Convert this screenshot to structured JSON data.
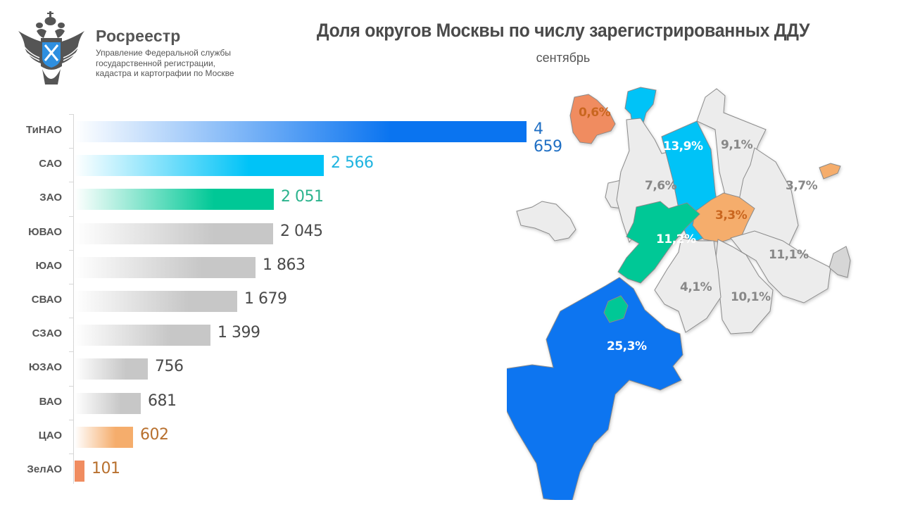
{
  "header": {
    "brand": "Росреестр",
    "brand_sub": [
      "Управление Федеральной службы",
      "государственной регистрации,",
      "кадастра и картографии по Москве"
    ],
    "title": "Доля округов Москвы по числу зарегистрированных ДДУ",
    "subtitle": "сентябрь"
  },
  "colors": {
    "tinao": "#0a74f0",
    "sao": "#00c3f7",
    "zao": "#00c896",
    "cao": "#f5ad6c",
    "zelao": "#f08c60",
    "grey": "#c7c7c7",
    "map_grey": "#ececec"
  },
  "chart_data": {
    "type": "bar",
    "orientation": "horizontal",
    "title": "Доля округов Москвы по числу зарегистрированных ДДУ",
    "subtitle": "сентябрь",
    "xlabel": "",
    "ylabel": "",
    "grid": false,
    "categories": [
      "ТиНАО",
      "САО",
      "ЗАО",
      "ЮВАО",
      "ЮАО",
      "СВАО",
      "СЗАО",
      "ЮЗАО",
      "ВАО",
      "ЦАО",
      "ЗелАО"
    ],
    "values": [
      4659,
      2566,
      2051,
      2045,
      1863,
      1679,
      1399,
      756,
      681,
      602,
      101
    ],
    "value_labels": [
      "4 659",
      "2 566",
      "2 051",
      "2 045",
      "1 863",
      "1 679",
      "1 399",
      "756",
      "681",
      "602",
      "101"
    ],
    "bar_colors": [
      "#0a74f0",
      "#00c3f7",
      "#00c896",
      "#c7c7c7",
      "#c7c7c7",
      "#c7c7c7",
      "#c7c7c7",
      "#c7c7c7",
      "#c7c7c7",
      "#f5ad6c",
      "#f08c60"
    ],
    "label_colors": [
      "#1f6fc4",
      "#1fb4e0",
      "#2bb38d",
      "#4a4a4a",
      "#4a4a4a",
      "#4a4a4a",
      "#4a4a4a",
      "#4a4a4a",
      "#4a4a4a",
      "#b8702e",
      "#b8702e"
    ],
    "map_shares": [
      {
        "district": "ТиНАО",
        "share": "25,3%"
      },
      {
        "district": "САО",
        "share": "13,9%"
      },
      {
        "district": "ЗАО",
        "share": "11,2%"
      },
      {
        "district": "ЮВАО",
        "share": "11,1%"
      },
      {
        "district": "ЮАО",
        "share": "10,1%"
      },
      {
        "district": "СВАО",
        "share": "9,1%"
      },
      {
        "district": "СЗАО",
        "share": "7,6%"
      },
      {
        "district": "ЮЗАО",
        "share": "4,1%"
      },
      {
        "district": "ВАО",
        "share": "3,7%"
      },
      {
        "district": "ЦАО",
        "share": "3,3%"
      },
      {
        "district": "ЗелАО",
        "share": "0,6%"
      }
    ]
  }
}
